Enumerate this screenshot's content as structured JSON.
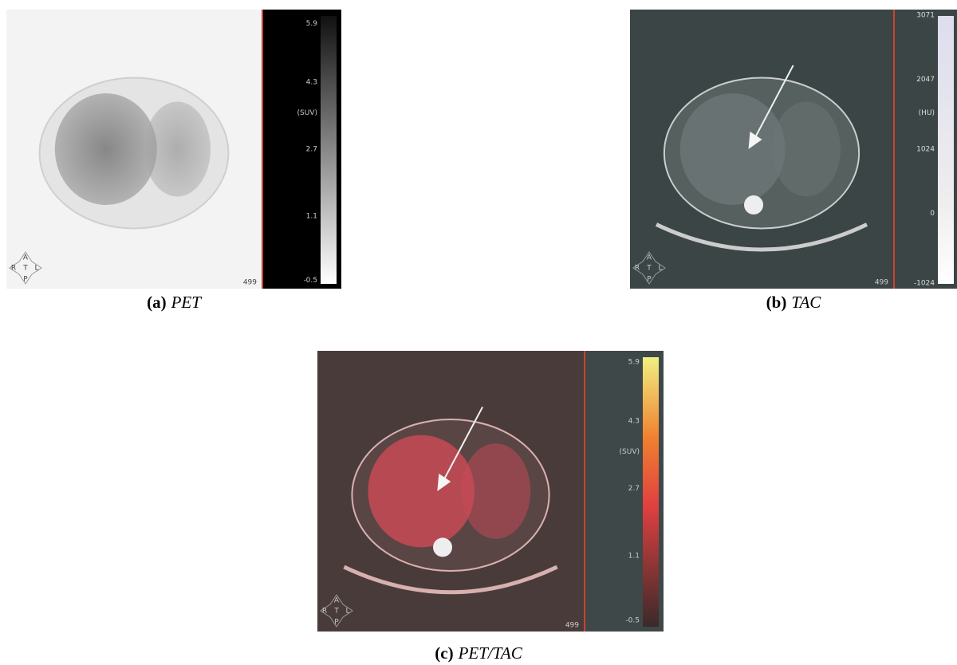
{
  "panels": [
    {
      "label": "(a)",
      "caption": "PET",
      "colorbar_labels": [
        "5.9",
        "4.3",
        "(SUV)",
        "2.7",
        "1.1",
        "-0.5"
      ],
      "slice": "499",
      "orientation": {
        "anterior": "A",
        "right": "R",
        "center": "T",
        "left": "L",
        "posterior": "P"
      }
    },
    {
      "label": "(b)",
      "caption": "TAC",
      "colorbar_labels": [
        "3071",
        "2047",
        "(HU)",
        "1024",
        "0",
        "-1024"
      ],
      "slice": "499",
      "orientation": {
        "anterior": "A",
        "right": "R",
        "center": "T",
        "left": "L",
        "posterior": "P"
      }
    },
    {
      "label": "(c)",
      "caption": "PET/TAC",
      "colorbar_labels": [
        "5.9",
        "4.3",
        "(SUV)",
        "2.7",
        "1.1",
        "-0.5"
      ],
      "slice": "499",
      "orientation": {
        "anterior": "A",
        "right": "R",
        "center": "T",
        "left": "L",
        "posterior": "P"
      }
    }
  ]
}
